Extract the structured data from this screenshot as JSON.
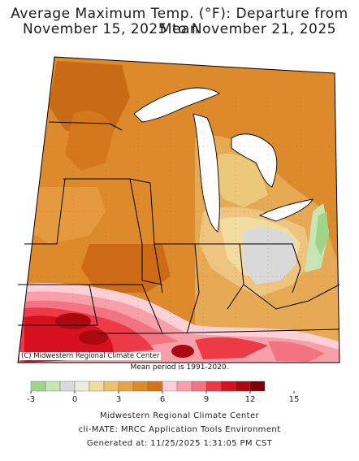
{
  "title_line1": "Average Maximum Temp. (°F): Departure from Mean",
  "title_line2": "November 15, 2025 to November 21, 2025",
  "credit": "(C) Midwestern Regional Climate Center",
  "mean_period": "Mean period is 1991-2020.",
  "legend": {
    "colors": [
      "#9fd58a",
      "#c8e6b5",
      "#d9d9d9",
      "#ececdc",
      "#f2dca0",
      "#ebc26c",
      "#e6a44a",
      "#de8a26",
      "#d2741a",
      "#fbd0d6",
      "#f8a0aa",
      "#f27480",
      "#ee3a46",
      "#d6101e",
      "#ac0810",
      "#7a0004"
    ],
    "ticks": [
      "-3",
      "0",
      "3",
      "6",
      "9",
      "12",
      "15"
    ]
  },
  "footer": {
    "line1": "Midwestern Regional Climate Center",
    "line2": "cli-MATE: MRCC Application Tools Environment",
    "line3": "Generated at: 11/25/2025 1:31:05 PM CST"
  }
}
